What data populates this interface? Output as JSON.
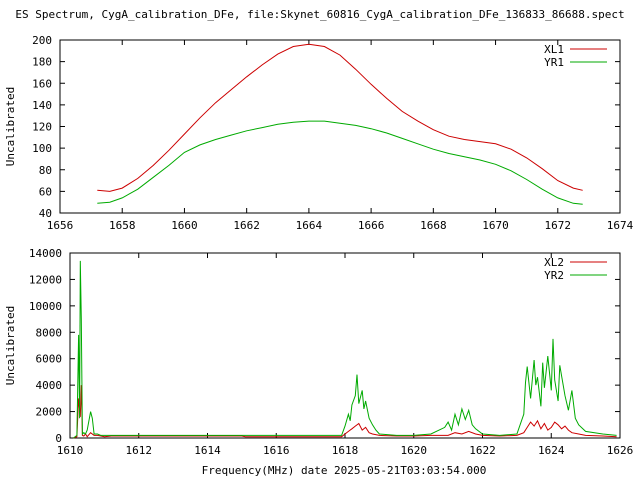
{
  "title": "ES Spectrum, CygA_calibration_DFe, file:Skynet_60816_CygA_calibration_DFe_136833_86688.spect",
  "xlabel": "Frequency(MHz) date 2025-05-21T03:03:54.000",
  "chart_data": [
    {
      "type": "line",
      "ylabel": "Uncalibrated",
      "xlim": [
        1656,
        1674
      ],
      "ylim": [
        40,
        200
      ],
      "x_ticks": [
        1656,
        1658,
        1660,
        1662,
        1664,
        1666,
        1668,
        1670,
        1672,
        1674
      ],
      "y_ticks": [
        40,
        60,
        80,
        100,
        120,
        140,
        160,
        180,
        200
      ],
      "grid": false,
      "legend_position": "top-right",
      "series": [
        {
          "name": "XL1",
          "color": "#cc0000",
          "x": [
            1657.2,
            1657.6,
            1658.0,
            1658.5,
            1659.0,
            1659.5,
            1660.0,
            1660.5,
            1661.0,
            1661.5,
            1662.0,
            1662.5,
            1663.0,
            1663.5,
            1664.0,
            1664.5,
            1665.0,
            1665.5,
            1666.0,
            1666.5,
            1667.0,
            1667.5,
            1668.0,
            1668.5,
            1669.0,
            1669.5,
            1670.0,
            1670.5,
            1671.0,
            1671.5,
            1672.0,
            1672.5,
            1672.8
          ],
          "values": [
            61,
            60,
            63,
            72,
            84,
            98,
            113,
            128,
            142,
            154,
            166,
            177,
            187,
            194,
            196,
            194,
            186,
            173,
            159,
            146,
            134,
            125,
            117,
            111,
            108,
            106,
            104,
            99,
            91,
            81,
            70,
            63,
            61
          ]
        },
        {
          "name": "YR1",
          "color": "#00aa00",
          "x": [
            1657.2,
            1657.6,
            1658.0,
            1658.5,
            1659.0,
            1659.5,
            1660.0,
            1660.5,
            1661.0,
            1661.5,
            1662.0,
            1662.5,
            1663.0,
            1663.5,
            1664.0,
            1664.5,
            1665.0,
            1665.5,
            1666.0,
            1666.5,
            1667.0,
            1667.5,
            1668.0,
            1668.5,
            1669.0,
            1669.5,
            1670.0,
            1670.5,
            1671.0,
            1671.5,
            1672.0,
            1672.5,
            1672.8
          ],
          "values": [
            49,
            50,
            54,
            62,
            73,
            84,
            96,
            103,
            108,
            112,
            116,
            119,
            122,
            124,
            125,
            125,
            123,
            121,
            118,
            114,
            109,
            104,
            99,
            95,
            92,
            89,
            85,
            79,
            71,
            62,
            54,
            49,
            48
          ]
        }
      ]
    },
    {
      "type": "line",
      "ylabel": "Uncalibrated",
      "xlim": [
        1610,
        1626
      ],
      "ylim": [
        0,
        14000
      ],
      "x_ticks": [
        1610,
        1612,
        1614,
        1616,
        1618,
        1620,
        1622,
        1624,
        1626
      ],
      "y_ticks": [
        0,
        2000,
        4000,
        6000,
        8000,
        10000,
        12000,
        14000
      ],
      "grid": false,
      "legend_position": "top-right",
      "series": [
        {
          "name": "XL2",
          "color": "#cc0000",
          "x": [
            1610.1,
            1610.2,
            1610.25,
            1610.3,
            1610.33,
            1610.36,
            1610.4,
            1610.45,
            1610.5,
            1610.6,
            1610.7,
            1610.8,
            1610.9,
            1611.0,
            1611.2,
            1611.3,
            1612.0,
            1613.0,
            1614.0,
            1615.0,
            1615.1,
            1616.0,
            1617.0,
            1617.9,
            1618.0,
            1618.1,
            1618.2,
            1618.3,
            1618.4,
            1618.5,
            1618.6,
            1618.7,
            1618.8,
            1619.0,
            1619.5,
            1620.0,
            1620.5,
            1621.0,
            1621.2,
            1621.4,
            1621.6,
            1621.8,
            1622.0,
            1622.5,
            1623.0,
            1623.2,
            1623.3,
            1623.4,
            1623.5,
            1623.6,
            1623.7,
            1623.8,
            1623.9,
            1624.0,
            1624.1,
            1624.2,
            1624.3,
            1624.4,
            1624.5,
            1624.6,
            1624.8,
            1625.0,
            1625.5,
            1625.9
          ],
          "values": [
            0,
            100,
            3000,
            1600,
            4000,
            200,
            150,
            300,
            100,
            400,
            200,
            200,
            150,
            100,
            150,
            150,
            150,
            150,
            150,
            150,
            100,
            100,
            100,
            100,
            300,
            500,
            700,
            900,
            1100,
            600,
            800,
            400,
            300,
            200,
            150,
            150,
            200,
            200,
            400,
            300,
            500,
            300,
            200,
            150,
            200,
            400,
            800,
            1200,
            900,
            1300,
            700,
            1100,
            600,
            800,
            1200,
            1000,
            700,
            900,
            600,
            400,
            300,
            200,
            150,
            100
          ]
        },
        {
          "name": "YR2",
          "color": "#00aa00",
          "x": [
            1610.1,
            1610.2,
            1610.25,
            1610.28,
            1610.3,
            1610.33,
            1610.36,
            1610.4,
            1610.45,
            1610.5,
            1610.6,
            1610.65,
            1610.7,
            1610.8,
            1610.9,
            1611.0,
            1611.3,
            1612.0,
            1613.0,
            1614.0,
            1615.0,
            1616.0,
            1617.0,
            1617.9,
            1618.0,
            1618.1,
            1618.15,
            1618.2,
            1618.3,
            1618.35,
            1618.4,
            1618.5,
            1618.55,
            1618.6,
            1618.7,
            1618.8,
            1618.9,
            1619.0,
            1619.5,
            1620.0,
            1620.5,
            1620.9,
            1621.0,
            1621.1,
            1621.2,
            1621.3,
            1621.4,
            1621.5,
            1621.6,
            1621.7,
            1621.8,
            1622.0,
            1622.5,
            1623.0,
            1623.2,
            1623.25,
            1623.3,
            1623.4,
            1623.5,
            1623.55,
            1623.6,
            1623.7,
            1623.75,
            1623.8,
            1623.9,
            1624.0,
            1624.05,
            1624.1,
            1624.2,
            1624.25,
            1624.3,
            1624.4,
            1624.5,
            1624.6,
            1624.7,
            1624.8,
            1625.0,
            1625.5,
            1625.9
          ],
          "values": [
            0,
            200,
            7800,
            1500,
            13400,
            9000,
            300,
            400,
            300,
            600,
            2000,
            1500,
            300,
            300,
            200,
            200,
            200,
            200,
            200,
            200,
            200,
            200,
            200,
            200,
            900,
            1800,
            1300,
            2500,
            3200,
            4800,
            2600,
            3600,
            2200,
            2800,
            1500,
            1000,
            600,
            300,
            200,
            200,
            300,
            800,
            1200,
            600,
            1800,
            1000,
            2200,
            1400,
            2100,
            1000,
            700,
            300,
            200,
            300,
            1800,
            4200,
            5400,
            3000,
            5900,
            4000,
            4600,
            2400,
            5700,
            3800,
            6200,
            3600,
            7500,
            4400,
            2800,
            5500,
            4700,
            3200,
            2100,
            3600,
            1500,
            1000,
            500,
            300,
            200
          ]
        }
      ]
    }
  ]
}
